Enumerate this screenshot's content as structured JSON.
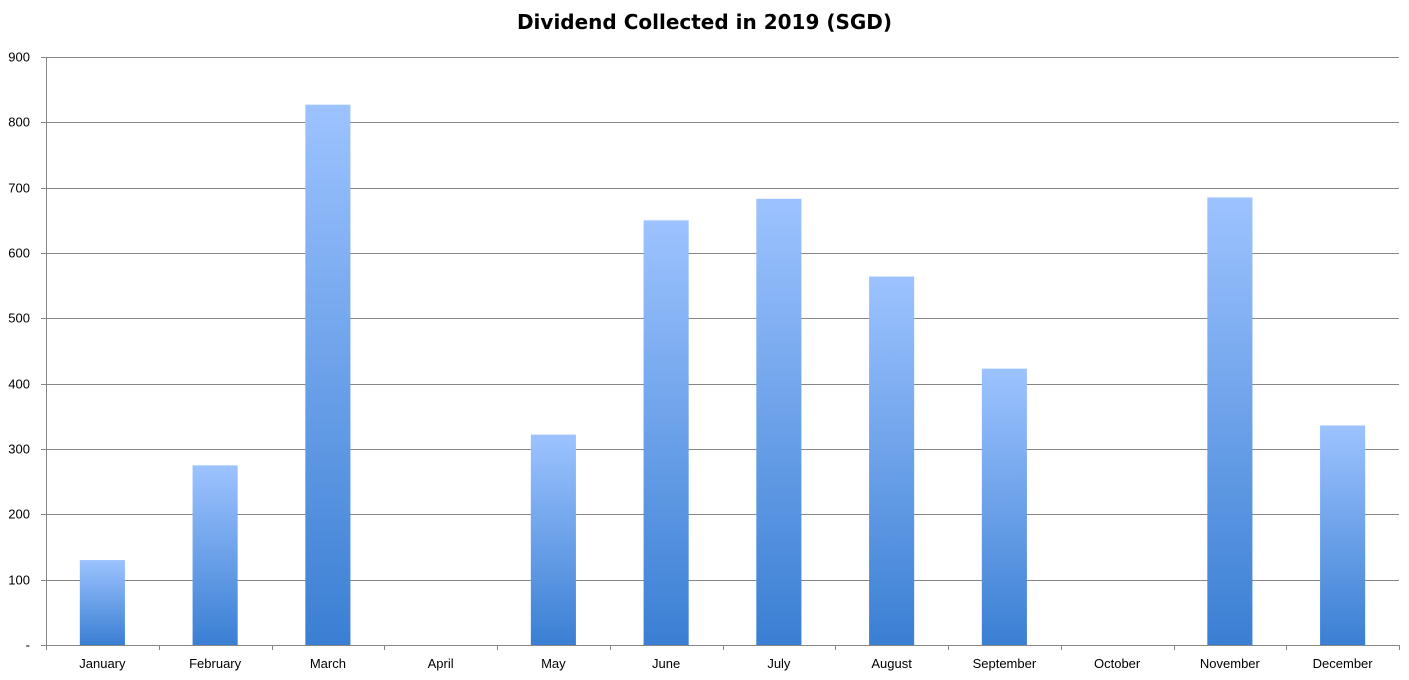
{
  "chart_data": {
    "type": "bar",
    "title": "Dividend Collected in 2019 (SGD)",
    "xlabel": "",
    "ylabel": "",
    "categories": [
      "January",
      "February",
      "March",
      "April",
      "May",
      "June",
      "July",
      "August",
      "September",
      "October",
      "November",
      "December"
    ],
    "values": [
      130,
      275,
      827,
      0,
      322,
      650,
      683,
      564,
      423,
      0,
      685,
      336
    ],
    "ylim": [
      0,
      900
    ],
    "y_ticks": [
      {
        "value": 0,
        "label": "-"
      },
      {
        "value": 100,
        "label": "100"
      },
      {
        "value": 200,
        "label": "200"
      },
      {
        "value": 300,
        "label": "300"
      },
      {
        "value": 400,
        "label": "400"
      },
      {
        "value": 500,
        "label": "500"
      },
      {
        "value": 600,
        "label": "600"
      },
      {
        "value": 700,
        "label": "700"
      },
      {
        "value": 800,
        "label": "800"
      },
      {
        "value": 900,
        "label": "900"
      }
    ],
    "grid": true,
    "legend": "none",
    "bar_color_top": "#9dc3ff",
    "bar_color_bottom": "#3a7fd3",
    "gridline_color": "#868686"
  }
}
